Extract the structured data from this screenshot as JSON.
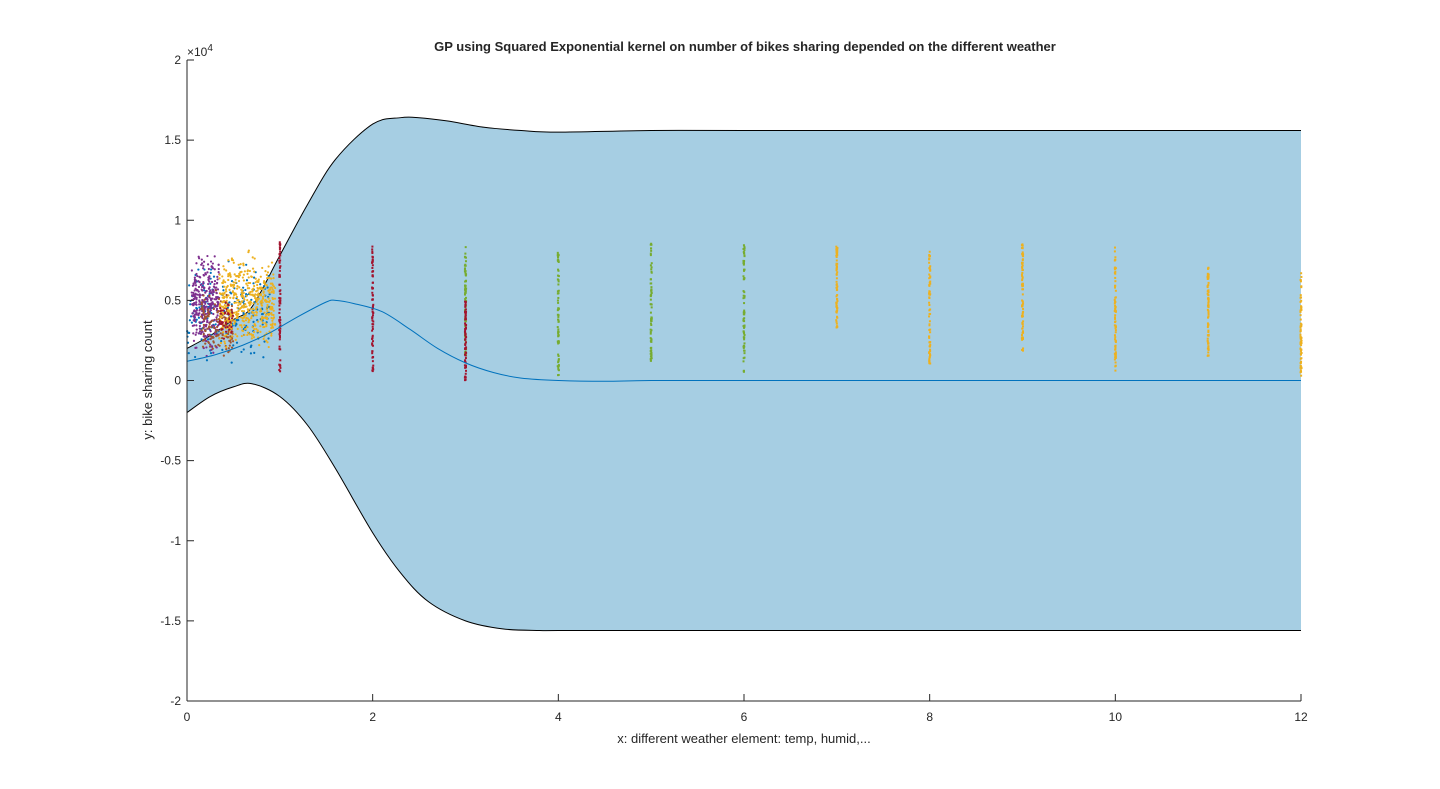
{
  "chart_data": {
    "type": "scatter",
    "title": "GP using Squared Exponential kernel on number of bikes sharing depended on the different weather",
    "xlabel": "x: different weather element: temp, humid,...",
    "ylabel": "y: bike sharing count",
    "y_exponent_label": "×10",
    "y_exponent_power": "4",
    "xlim": [
      0,
      12
    ],
    "ylim": [
      -2,
      2
    ],
    "x_ticks": [
      0,
      2,
      4,
      6,
      8,
      10,
      12
    ],
    "x_tick_labels": [
      "0",
      "2",
      "4",
      "6",
      "8",
      "10",
      "12"
    ],
    "y_ticks": [
      -2,
      -1.5,
      -1,
      -0.5,
      0,
      0.5,
      1,
      1.5,
      2
    ],
    "y_tick_labels": [
      "-2",
      "-1.5",
      "-1",
      "-0.5",
      "0",
      "0.5",
      "1",
      "1.5",
      "2"
    ],
    "grid": false,
    "legend": "none",
    "colors": {
      "band_fill": "#a6cee3",
      "band_edge": "#000000",
      "mean_line": "#0072bd",
      "blue": "#0072bd",
      "orange": "#edb120",
      "purple": "#7e2f8e",
      "red": "#a2142f",
      "green": "#77ac30",
      "brown": "#a2552f"
    },
    "band_upper": {
      "x": [
        0,
        0.25,
        0.5,
        0.7,
        1.0,
        1.3,
        1.6,
        2.0,
        2.3,
        2.5,
        2.8,
        3.2,
        3.6,
        4.0,
        5.0,
        6.0,
        8.0,
        10.0,
        12.0
      ],
      "y": [
        0.2,
        0.28,
        0.38,
        0.46,
        0.78,
        1.1,
        1.38,
        1.6,
        1.64,
        1.64,
        1.62,
        1.58,
        1.56,
        1.55,
        1.56,
        1.56,
        1.56,
        1.56,
        1.56
      ]
    },
    "band_lower": {
      "x": [
        0,
        0.25,
        0.5,
        0.7,
        1.0,
        1.3,
        1.6,
        2.0,
        2.3,
        2.6,
        3.0,
        3.4,
        3.8,
        4.0,
        5.0,
        6.0,
        8.0,
        10.0,
        12.0
      ],
      "y": [
        -0.2,
        -0.1,
        -0.04,
        -0.02,
        -0.1,
        -0.28,
        -0.55,
        -0.95,
        -1.2,
        -1.38,
        -1.5,
        -1.55,
        -1.56,
        -1.56,
        -1.56,
        -1.56,
        -1.56,
        -1.56,
        -1.56
      ]
    },
    "mean": {
      "x": [
        0,
        0.3,
        0.6,
        0.9,
        1.2,
        1.5,
        1.6,
        1.8,
        2.1,
        2.4,
        2.7,
        3.0,
        3.3,
        3.6,
        4.0,
        4.5,
        5.0,
        6.0,
        12.0
      ],
      "y": [
        0.12,
        0.16,
        0.22,
        0.3,
        0.4,
        0.49,
        0.5,
        0.48,
        0.43,
        0.32,
        0.2,
        0.11,
        0.05,
        0.015,
        0.0,
        -0.005,
        0.0,
        0.0,
        0.0
      ]
    },
    "clusters": [
      {
        "color": "blue",
        "x_min": 0.0,
        "x_max": 0.9,
        "y_min": 0.05,
        "y_max": 0.82,
        "count": 220
      },
      {
        "color": "purple",
        "x_min": 0.05,
        "x_max": 0.35,
        "y_min": 0.1,
        "y_max": 0.86,
        "count": 320
      },
      {
        "color": "brown",
        "x_min": 0.15,
        "x_max": 0.5,
        "y_min": 0.05,
        "y_max": 0.6,
        "count": 140
      },
      {
        "color": "orange",
        "x_min": 0.35,
        "x_max": 0.95,
        "y_min": 0.1,
        "y_max": 0.86,
        "count": 480
      },
      {
        "color": "red",
        "x_min": 0.35,
        "x_max": 0.5,
        "y_min": 0.2,
        "y_max": 0.55,
        "count": 40
      }
    ],
    "stripes": [
      {
        "x": 1,
        "color": "red",
        "y_min": 0.05,
        "y_max": 0.88
      },
      {
        "x": 2,
        "color": "red",
        "y_min": 0.05,
        "y_max": 0.85
      },
      {
        "x": 3,
        "color": "green",
        "y_min": 0.15,
        "y_max": 0.84
      },
      {
        "x": 3,
        "color": "red",
        "y_min": 0.0,
        "y_max": 0.5
      },
      {
        "x": 4,
        "color": "green",
        "y_min": 0.03,
        "y_max": 0.8
      },
      {
        "x": 5,
        "color": "green",
        "y_min": 0.12,
        "y_max": 0.86
      },
      {
        "x": 6,
        "color": "green",
        "y_min": 0.05,
        "y_max": 0.89
      },
      {
        "x": 7,
        "color": "orange",
        "y_min": 0.32,
        "y_max": 0.84
      },
      {
        "x": 8,
        "color": "orange",
        "y_min": 0.1,
        "y_max": 0.81
      },
      {
        "x": 9,
        "color": "orange",
        "y_min": 0.18,
        "y_max": 0.89
      },
      {
        "x": 10,
        "color": "orange",
        "y_min": 0.05,
        "y_max": 0.84
      },
      {
        "x": 11,
        "color": "orange",
        "y_min": 0.14,
        "y_max": 0.71
      },
      {
        "x": 12,
        "color": "orange",
        "y_min": 0.03,
        "y_max": 0.68
      }
    ]
  }
}
